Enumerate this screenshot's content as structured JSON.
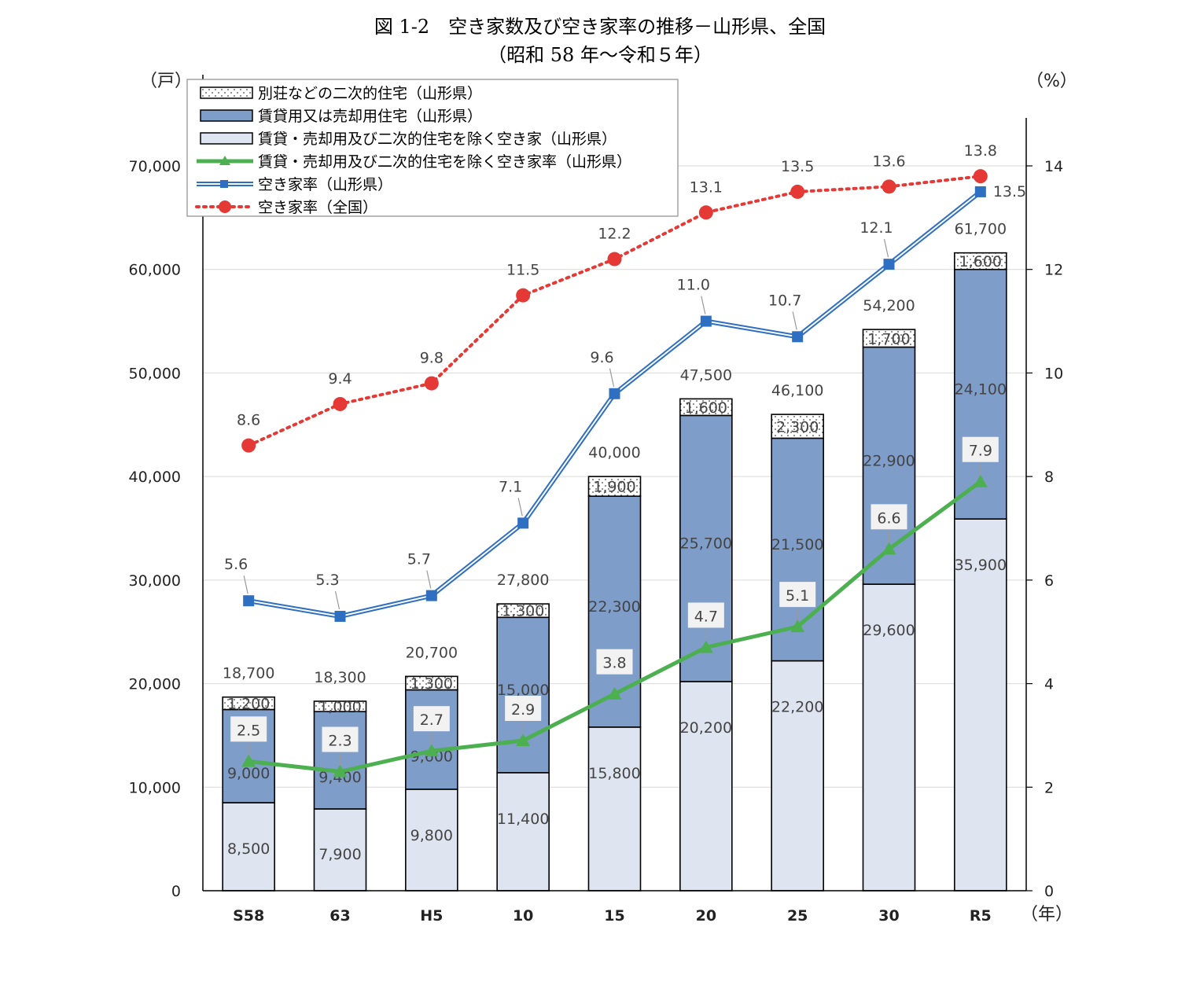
{
  "title": "図 1-2　空き家数及び空き家率の推移－山形県、全国",
  "subtitle": "（昭和 58 年～令和５年）",
  "chart_data": {
    "type": "bar",
    "categories": [
      "S58",
      "63",
      "H5",
      "10",
      "15",
      "20",
      "25",
      "30",
      "R5"
    ],
    "y_left_unit": "（戸）",
    "y_right_unit": "（%）",
    "x_unit": "（年）",
    "ylim_left": [
      0,
      70000
    ],
    "ylim_right": [
      0,
      14
    ],
    "y_left_ticks": [
      "0",
      "10,000",
      "20,000",
      "30,000",
      "40,000",
      "50,000",
      "60,000",
      "70,000"
    ],
    "y_right_ticks": [
      "0",
      "2",
      "4",
      "6",
      "8",
      "10",
      "12",
      "14"
    ],
    "bar_series": [
      {
        "name": "賃貸・売却用及び二次的住宅を除く空き家（山形県）",
        "values": [
          8500,
          7900,
          9800,
          11400,
          15800,
          20200,
          22200,
          29600,
          35900
        ],
        "labels": [
          "8,500",
          "7,900",
          "9,800",
          "11,400",
          "15,800",
          "20,200",
          "22,200",
          "29,600",
          "35,900"
        ],
        "color": "#dfe5f0"
      },
      {
        "name": "賃貸用又は売却用住宅（山形県）",
        "values": [
          9000,
          9400,
          9600,
          15000,
          22300,
          25700,
          21500,
          22900,
          24100
        ],
        "labels": [
          "9,000",
          "9,400",
          "9,600",
          "15,000",
          "22,300",
          "25,700",
          "21,500",
          "22,900",
          "24,100"
        ],
        "color": "#7f9dc9"
      },
      {
        "name": "別荘などの二次的住宅（山形県）",
        "values": [
          1200,
          1000,
          1300,
          1300,
          1900,
          1600,
          2300,
          1700,
          1600
        ],
        "labels": [
          "1,200",
          "1,000",
          "1,300",
          "1,300",
          "1,900",
          "1,600",
          "2,300",
          "1,700",
          "1,600"
        ],
        "color": "#ffffff"
      }
    ],
    "totals": [
      "18,700",
      "18,300",
      "20,700",
      "27,800",
      "40,000",
      "47,500",
      "46,100",
      "54,200",
      "61,700"
    ],
    "line_series": [
      {
        "name": "賃貸・売却用及び二次的住宅を除く空き家率（山形県）",
        "values": [
          2.5,
          2.3,
          2.7,
          2.9,
          3.8,
          4.7,
          5.1,
          6.6,
          7.9
        ],
        "labels": [
          "2.5",
          "2.3",
          "2.7",
          "2.9",
          "3.8",
          "4.7",
          "5.1",
          "6.6",
          "7.9"
        ],
        "color": "#4caf50"
      },
      {
        "name": "空き家率（山形県）",
        "values": [
          5.6,
          5.3,
          5.7,
          7.1,
          9.6,
          11.0,
          10.7,
          12.1,
          13.5
        ],
        "labels": [
          "5.6",
          "5.3",
          "5.7",
          "7.1",
          "9.6",
          "11.0",
          "10.7",
          "12.1",
          "13.5"
        ],
        "color": "#2f6fc1"
      },
      {
        "name": "空き家率（全国）",
        "values": [
          8.6,
          9.4,
          9.8,
          11.5,
          12.2,
          13.1,
          13.5,
          13.6,
          13.8
        ],
        "labels": [
          "8.6",
          "9.4",
          "9.8",
          "11.5",
          "12.2",
          "13.1",
          "13.5",
          "13.6",
          "13.8"
        ],
        "color": "#e53935"
      }
    ],
    "legend_order": [
      "別荘などの二次的住宅（山形県）",
      "賃貸用又は売却用住宅（山形県）",
      "賃貸・売却用及び二次的住宅を除く空き家（山形県）",
      "賃貸・売却用及び二次的住宅を除く空き家率（山形県）",
      "空き家率（山形県）",
      "空き家率（全国）"
    ],
    "legend_position": "top-left",
    "grid": true
  }
}
